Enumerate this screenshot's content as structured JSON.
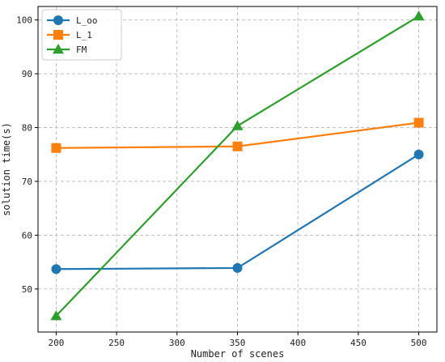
{
  "chart_data": {
    "type": "line",
    "title": "",
    "xlabel": "Number of scenes",
    "ylabel": "solution time(s)",
    "x": [
      200,
      350,
      500
    ],
    "xlim": [
      185,
      515
    ],
    "ylim": [
      42,
      102.5
    ],
    "xticks": [
      200,
      250,
      300,
      350,
      400,
      450,
      500
    ],
    "yticks": [
      50,
      60,
      70,
      80,
      90,
      100
    ],
    "grid": true,
    "legend_position": "top-left",
    "series": [
      {
        "name": "L_oo",
        "values": [
          53.7,
          53.9,
          75.0
        ],
        "color": "#1f77b4",
        "marker": "circle"
      },
      {
        "name": "L_1",
        "values": [
          76.2,
          76.5,
          80.9
        ],
        "color": "#ff7f0e",
        "marker": "square"
      },
      {
        "name": "FM",
        "values": [
          45.0,
          80.3,
          100.7
        ],
        "color": "#2ca02c",
        "marker": "triangle"
      }
    ]
  }
}
